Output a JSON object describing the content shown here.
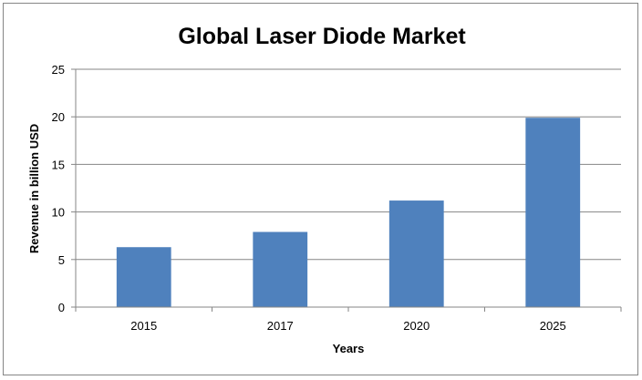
{
  "chart_data": {
    "type": "bar",
    "title": "Global Laser Diode Market",
    "xlabel": "Years",
    "ylabel": "Revenue in billion USD",
    "categories": [
      "2015",
      "2017",
      "2020",
      "2025"
    ],
    "values": [
      6.3,
      7.9,
      11.2,
      19.9
    ],
    "ylim": [
      0,
      25
    ],
    "yticks": [
      "0",
      "5",
      "10",
      "15",
      "20",
      "25"
    ],
    "grid": true,
    "legend": "none",
    "bar_color": "#4F81BD"
  }
}
